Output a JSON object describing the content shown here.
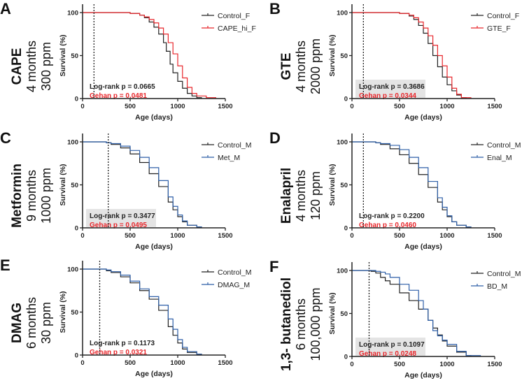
{
  "colors": {
    "control": "#222222",
    "red": "#e8262b",
    "blue": "#2e5fa8",
    "statbox": "#e4e4e4"
  },
  "chart_data": [
    {
      "type": "line",
      "letter": "A",
      "drug": "CAPE",
      "duration": "4 months",
      "dose": "300 ppm",
      "xlabel": "Age (days)",
      "ylabel": "Survival (%)",
      "xlim": [
        0,
        1500
      ],
      "ylim": [
        0,
        100
      ],
      "xticks": [
        "0",
        "500",
        "1000",
        "1500"
      ],
      "yticks": [
        "0",
        "50",
        "100"
      ],
      "treatment_start": 120,
      "stat_box": false,
      "logrank": "Log-rank p = 0.0665",
      "gehan": "Gehan p = 0.0481",
      "series": [
        {
          "name": "Control_F",
          "color": "control",
          "x": [
            0,
            500,
            600,
            650,
            700,
            750,
            800,
            850,
            880,
            920,
            950,
            1000,
            1050,
            1100,
            1150,
            1200,
            1250
          ],
          "y": [
            100,
            99,
            97,
            94,
            89,
            83,
            75,
            65,
            55,
            40,
            30,
            20,
            12,
            6,
            3,
            1,
            0
          ]
        },
        {
          "name": "CAPE_hi_F",
          "color": "red",
          "x": [
            0,
            500,
            600,
            650,
            700,
            750,
            800,
            850,
            900,
            950,
            1000,
            1050,
            1100,
            1150,
            1200,
            1300,
            1400
          ],
          "y": [
            100,
            99,
            97,
            95,
            92,
            88,
            82,
            75,
            65,
            52,
            38,
            24,
            13,
            6,
            3,
            1,
            0
          ]
        }
      ]
    },
    {
      "type": "line",
      "letter": "B",
      "drug": "GTE",
      "duration": "4 months",
      "dose": "2000 ppm",
      "xlabel": "Age (days)",
      "ylabel": "Survival (%)",
      "xlim": [
        0,
        1500
      ],
      "ylim": [
        0,
        100
      ],
      "xticks": [
        "0",
        "500",
        "1000",
        "1500"
      ],
      "yticks": [
        "0",
        "50",
        "100"
      ],
      "treatment_start": 120,
      "stat_box": true,
      "logrank": "Log-rank p = 0.3686",
      "gehan": "Gehan p = 0.0344",
      "series": [
        {
          "name": "Control_F",
          "color": "control",
          "x": [
            0,
            500,
            600,
            650,
            700,
            750,
            800,
            850,
            900,
            950,
            1000,
            1050,
            1100,
            1150,
            1200
          ],
          "y": [
            100,
            99,
            96,
            92,
            85,
            76,
            64,
            50,
            37,
            25,
            16,
            9,
            4,
            1,
            0
          ]
        },
        {
          "name": "GTE_F",
          "color": "red",
          "x": [
            0,
            500,
            600,
            650,
            700,
            750,
            800,
            850,
            900,
            950,
            1000,
            1050,
            1100,
            1150,
            1250
          ],
          "y": [
            100,
            99,
            97,
            94,
            89,
            82,
            73,
            62,
            50,
            38,
            25,
            12,
            5,
            1,
            0
          ]
        }
      ]
    },
    {
      "type": "line",
      "letter": "C",
      "drug": "Metformin",
      "duration": "9 months",
      "dose": "1000 ppm",
      "xlabel": "Age (days)",
      "ylabel": "Survival (%)",
      "xlim": [
        0,
        1500
      ],
      "ylim": [
        0,
        100
      ],
      "xticks": [
        "0",
        "500",
        "1000",
        "1500"
      ],
      "yticks": [
        "0",
        "50",
        "100"
      ],
      "treatment_start": 270,
      "stat_box": true,
      "logrank": "Log-rank p = 0.3477",
      "gehan": "Gehan p = 0.0495",
      "series": [
        {
          "name": "Control_M",
          "color": "control",
          "x": [
            0,
            250,
            300,
            400,
            500,
            600,
            700,
            800,
            900,
            950,
            1000,
            1050,
            1100,
            1200,
            1250
          ],
          "y": [
            100,
            99,
            97,
            93,
            86,
            76,
            63,
            48,
            30,
            21,
            13,
            7,
            3,
            1,
            0
          ]
        },
        {
          "name": "Met_M",
          "color": "blue",
          "x": [
            0,
            250,
            300,
            400,
            500,
            600,
            700,
            800,
            900,
            950,
            1000,
            1050,
            1100,
            1200,
            1250
          ],
          "y": [
            100,
            99,
            98,
            95,
            90,
            82,
            70,
            55,
            36,
            25,
            15,
            8,
            3,
            1,
            0
          ]
        }
      ]
    },
    {
      "type": "line",
      "letter": "D",
      "drug": "Enalapril",
      "duration": "4 months",
      "dose": "120 ppm",
      "xlabel": "Age (days)",
      "ylabel": "Survival (%)",
      "xlim": [
        0,
        1500
      ],
      "ylim": [
        0,
        100
      ],
      "xticks": [
        "0",
        "500",
        "1000",
        "1500"
      ],
      "yticks": [
        "0",
        "50",
        "100"
      ],
      "treatment_start": 120,
      "stat_box": false,
      "logrank": "Log-rank p = 0.2200",
      "gehan": "Gehan p = 0.0460",
      "series": [
        {
          "name": "Control_M",
          "color": "control",
          "x": [
            0,
            250,
            300,
            400,
            500,
            600,
            700,
            800,
            900,
            950,
            1000,
            1050,
            1100,
            1200,
            1250
          ],
          "y": [
            100,
            99,
            97,
            92,
            85,
            75,
            62,
            47,
            30,
            21,
            13,
            7,
            3,
            1,
            0
          ]
        },
        {
          "name": "Enal_M",
          "color": "blue",
          "x": [
            0,
            250,
            300,
            400,
            500,
            600,
            700,
            800,
            900,
            950,
            1000,
            1050,
            1100,
            1200,
            1250
          ],
          "y": [
            100,
            99,
            98,
            96,
            91,
            82,
            70,
            54,
            35,
            24,
            14,
            7,
            3,
            1,
            0
          ]
        }
      ]
    },
    {
      "type": "line",
      "letter": "E",
      "drug": "DMAG",
      "duration": "6 months",
      "dose": "30 ppm",
      "xlabel": "Age (days)",
      "ylabel": "Survival (%)",
      "xlim": [
        0,
        1500
      ],
      "ylim": [
        0,
        100
      ],
      "xticks": [
        "0",
        "500",
        "1000",
        "1500"
      ],
      "yticks": [
        "0",
        "50",
        "100"
      ],
      "treatment_start": 180,
      "stat_box": false,
      "logrank": "Log-rank p = 0.1173",
      "gehan": "Gehan p = 0.0321",
      "series": [
        {
          "name": "Control_M",
          "color": "control",
          "x": [
            0,
            180,
            250,
            300,
            400,
            500,
            600,
            700,
            800,
            900,
            950,
            1000,
            1050,
            1100,
            1200,
            1250
          ],
          "y": [
            100,
            100,
            98,
            96,
            91,
            84,
            75,
            65,
            52,
            33,
            23,
            14,
            7,
            3,
            1,
            0
          ]
        },
        {
          "name": "DMAG_M",
          "color": "blue",
          "x": [
            0,
            180,
            250,
            300,
            400,
            500,
            600,
            700,
            800,
            900,
            950,
            1000,
            1050,
            1100,
            1200,
            1250
          ],
          "y": [
            100,
            100,
            99,
            97,
            93,
            86,
            77,
            68,
            58,
            42,
            30,
            18,
            9,
            4,
            1,
            0
          ]
        }
      ]
    },
    {
      "type": "line",
      "letter": "F",
      "drug": "1,3- butanediol",
      "duration": "6 months",
      "dose": "100,000 ppm",
      "xlabel": "Age (days)",
      "ylabel": "Survival (%)",
      "xlim": [
        0,
        1500
      ],
      "ylim": [
        0,
        100
      ],
      "xticks": [
        "0",
        "500",
        "1000",
        "1500"
      ],
      "yticks": [
        "0",
        "50",
        "100"
      ],
      "treatment_start": 180,
      "stat_box": true,
      "logrank": "Log-rank p = 0.1097",
      "gehan": "Gehan p = 0.0248",
      "series": [
        {
          "name": "Control_M",
          "color": "control",
          "x": [
            0,
            200,
            250,
            300,
            350,
            400,
            500,
            600,
            700,
            800,
            850,
            900,
            950,
            1000,
            1100,
            1200,
            1250
          ],
          "y": [
            100,
            99,
            97,
            92,
            88,
            84,
            74,
            65,
            55,
            42,
            33,
            25,
            18,
            12,
            5,
            1,
            0
          ]
        },
        {
          "name": "BD_M",
          "color": "blue",
          "x": [
            0,
            250,
            300,
            350,
            400,
            500,
            600,
            700,
            750,
            800,
            850,
            900,
            950,
            1000,
            1100,
            1200,
            1350
          ],
          "y": [
            100,
            99,
            98,
            96,
            92,
            84,
            77,
            65,
            55,
            42,
            30,
            24,
            19,
            14,
            6,
            1,
            0
          ]
        }
      ]
    }
  ]
}
